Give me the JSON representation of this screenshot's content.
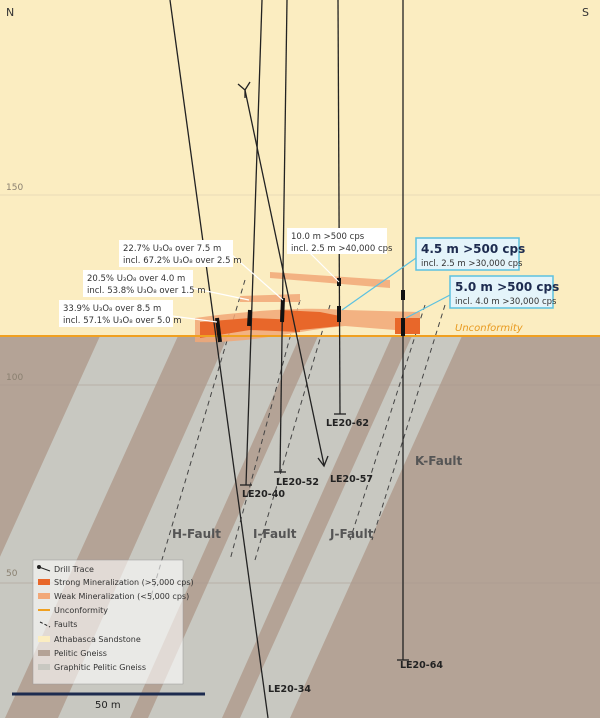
{
  "compass": {
    "north": "N",
    "south": "S"
  },
  "elevations": [
    150,
    100,
    50
  ],
  "callouts": [
    {
      "lines": [
        "22.7% U₃O₈ over 7.5 m",
        "incl. 67.2% U₃O₈ over 2.5 m"
      ]
    },
    {
      "lines": [
        "20.5% U₃O₈ over 4.0 m",
        "incl. 53.8% U₃O₈ over 1.5 m"
      ]
    },
    {
      "lines": [
        "33.9% U₃O₈ over 8.5 m",
        "incl. 57.1% U₃O₈ over 5.0 m"
      ]
    },
    {
      "lines": [
        "10.0 m >500 cps",
        "incl. 2.5 m >40,000 cps"
      ]
    },
    {
      "lines": [
        "4.5 m >500 cps",
        "incl. 2.5 m >30,000 cps"
      ]
    },
    {
      "lines": [
        "5.0 m >500 cps",
        "incl. 4.0 m >30,000 cps"
      ]
    }
  ],
  "holes": [
    "LE20-62",
    "LE20-57",
    "LE20-40",
    "LE20-52",
    "LE20-64",
    "LE20-34"
  ],
  "faults": [
    "H-Fault",
    "I-Fault",
    "J-Fault",
    "K-Fault"
  ],
  "unconformity_label": "Unconformity",
  "legend": [
    "Drill Trace",
    "Strong Mineralization (>5,000 cps)",
    "Weak Mineralization (<5,000 cps)",
    "Unconformity",
    "Faults",
    "Athabasca Sandstone",
    "Pelitic Gneiss",
    "Graphitic Pelitic Gneiss"
  ],
  "scale": "50 m"
}
